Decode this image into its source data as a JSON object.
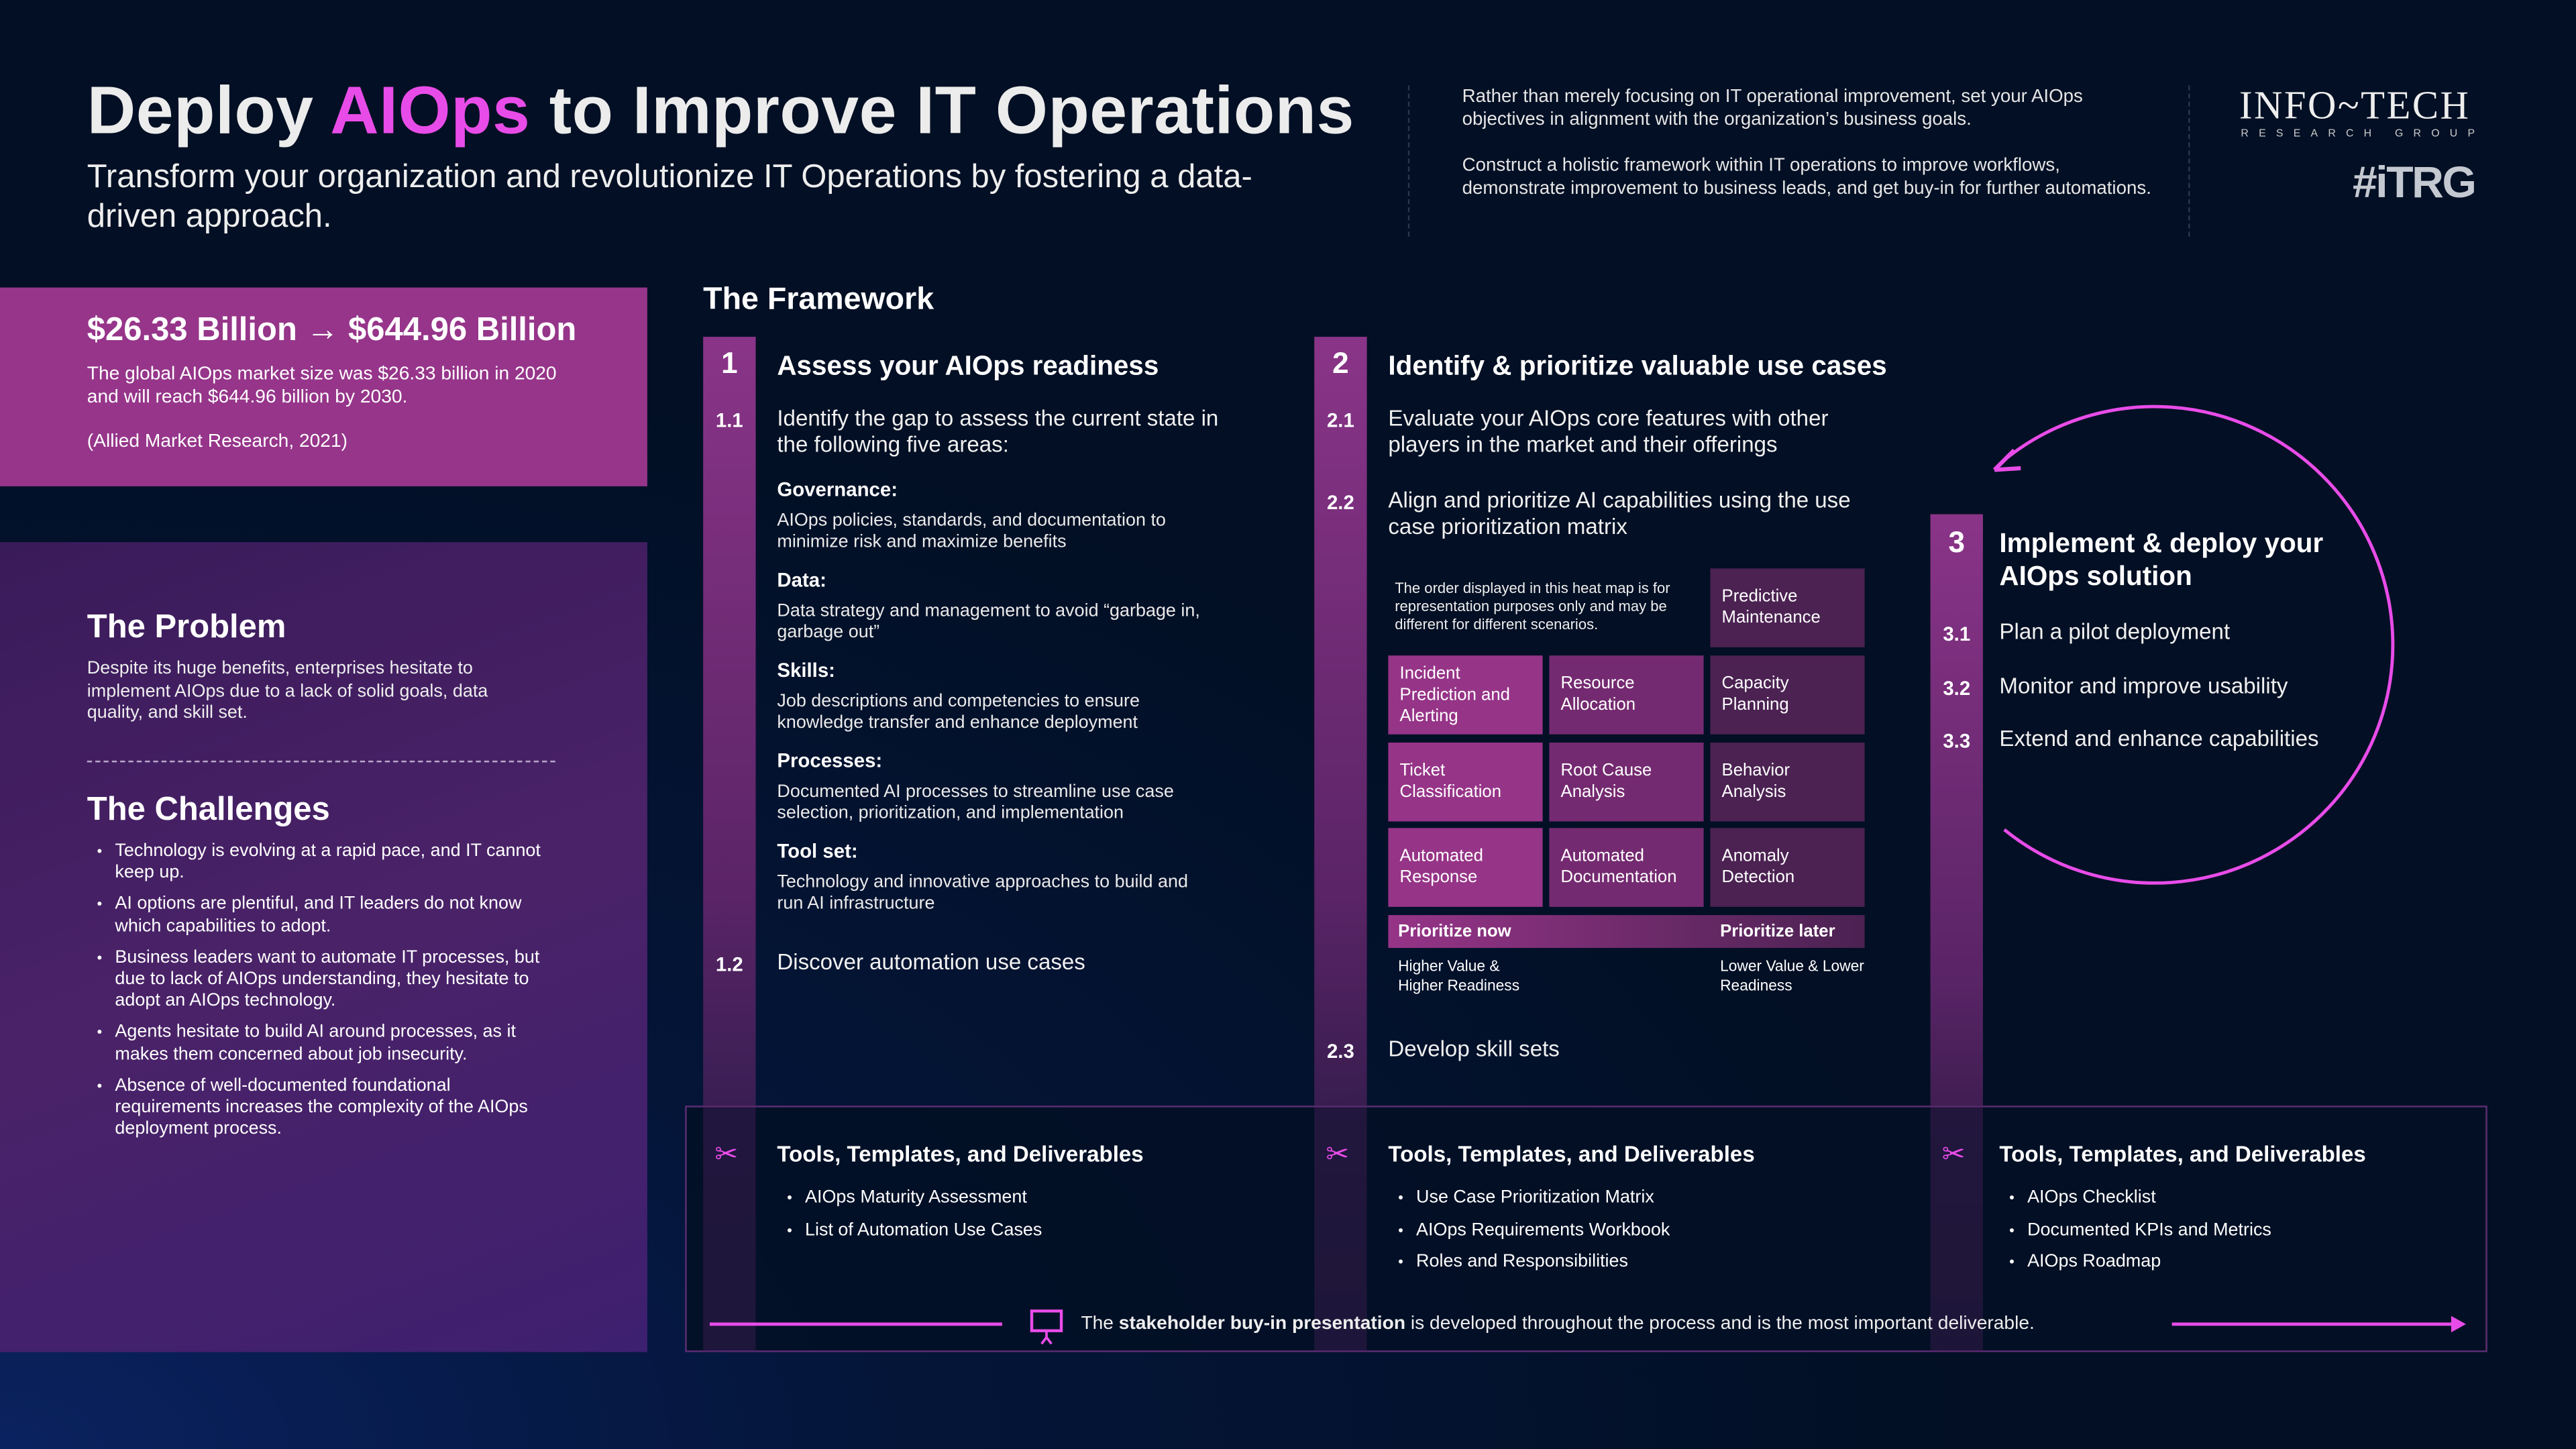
{
  "header": {
    "title_pre": "Deploy ",
    "title_hl": "AIOps",
    "title_post": " to Improve IT Operations",
    "subtitle": "Transform your organization and revolutionize IT Operations by fostering a data-driven approach.",
    "intro_1": "Rather than merely focusing on IT operational improvement, set your AIOps objectives in alignment with the organization’s business goals.",
    "intro_2": "Construct a holistic framework within IT operations to improve workflows, demonstrate improvement to business leads, and get buy-in for further automations."
  },
  "logo": {
    "name": "INFO~TECH",
    "tagline": "RESEARCH GROUP",
    "hashtag": "#iTRG"
  },
  "market": {
    "headline": "$26.33 Billion → $644.96 Billion",
    "text": "The global AIOps market size was $26.33 billion in 2020 and will reach $644.96 billion by 2030.",
    "source": "(Allied Market Research, 2021)"
  },
  "problem": {
    "title": "The Problem",
    "text": "Despite its huge benefits, enterprises hesitate to implement AIOps due to a lack of solid goals, data quality, and skill set."
  },
  "challenges": {
    "title": "The Challenges",
    "items": [
      "Technology is evolving at a rapid pace, and IT cannot keep up.",
      "AI options are plentiful, and IT leaders do not know which capabilities to adopt.",
      "Business leaders want to automate IT processes, but due to lack of AIOps understanding, they hesitate to adopt an AIOps technology.",
      "Agents hesitate to build AI around processes, as it makes them concerned about job insecurity.",
      "Absence of well-documented foundational requirements increases the complexity of the AIOps deployment process."
    ]
  },
  "framework": {
    "title": "The Framework",
    "step1": {
      "num": "1",
      "title": "Assess your AIOps readiness",
      "s11": {
        "num": "1.1",
        "text": "Identify the gap to assess the current state in the following five areas:"
      },
      "areas": [
        {
          "name": "Governance:",
          "desc": "AIOps policies, standards, and documentation to minimize risk and maximize benefits"
        },
        {
          "name": "Data:",
          "desc": "Data strategy and management to avoid “garbage in, garbage out”"
        },
        {
          "name": "Skills:",
          "desc": "Job descriptions and competencies to ensure knowledge transfer and enhance deployment"
        },
        {
          "name": "Processes:",
          "desc": "Documented AI processes to streamline use case selection, prioritization, and implementation"
        },
        {
          "name": "Tool set:",
          "desc": "Technology and innovative approaches to build and run AI infrastructure"
        }
      ],
      "s12": {
        "num": "1.2",
        "text": "Discover automation use cases"
      }
    },
    "step2": {
      "num": "2",
      "title": "Identify & prioritize valuable use cases",
      "s21": {
        "num": "2.1",
        "text": "Evaluate your AIOps core features with other players in the market and their offerings"
      },
      "s22": {
        "num": "2.2",
        "text": "Align and prioritize AI capabilities using the use case prioritization matrix"
      },
      "s23": {
        "num": "2.3",
        "text": "Develop skill sets"
      },
      "heatmap": {
        "note": "The order displayed in this heat map is for representation purposes only and may be different for different scenarios.",
        "top": "Predictive Maintenance",
        "rows": [
          [
            "Incident Prediction and Alerting",
            "Resource Allocation",
            "Capacity Planning"
          ],
          [
            "Ticket Classification",
            "Root Cause Analysis",
            "Behavior Analysis"
          ],
          [
            "Automated Response",
            "Automated Documentation",
            "Anomaly Detection"
          ]
        ],
        "now": "Prioritize now",
        "later": "Prioritize later",
        "now_desc": "Higher Value & Higher Readiness",
        "later_desc": "Lower Value & Lower Readiness",
        "colors": [
          "#963487",
          "#742a70",
          "#4b2252"
        ]
      }
    },
    "step3": {
      "num": "3",
      "title": "Implement & deploy your AIOps solution",
      "subs": [
        {
          "num": "3.1",
          "text": "Plan a pilot deployment"
        },
        {
          "num": "3.2",
          "text": "Monitor and improve usability"
        },
        {
          "num": "3.3",
          "text": "Extend and enhance capabilities"
        }
      ]
    }
  },
  "tools": {
    "title": "Tools, Templates, and Deliverables",
    "col1": [
      "AIOps Maturity Assessment",
      "List of Automation Use Cases"
    ],
    "col2": [
      "Use Case Prioritization Matrix",
      "AIOps Requirements Workbook",
      "Roles and Responsibilities"
    ],
    "col3": [
      "AIOps Checklist",
      "Documented KPIs and Metrics",
      "AIOps Roadmap"
    ]
  },
  "buyin": {
    "pre": "The ",
    "bold": "stakeholder buy-in presentation",
    "post": " is developed throughout the process and is the most important deliverable."
  },
  "colors": {
    "accent": "#e84ce8",
    "background": "#020f24",
    "market_box": "#96358a"
  }
}
